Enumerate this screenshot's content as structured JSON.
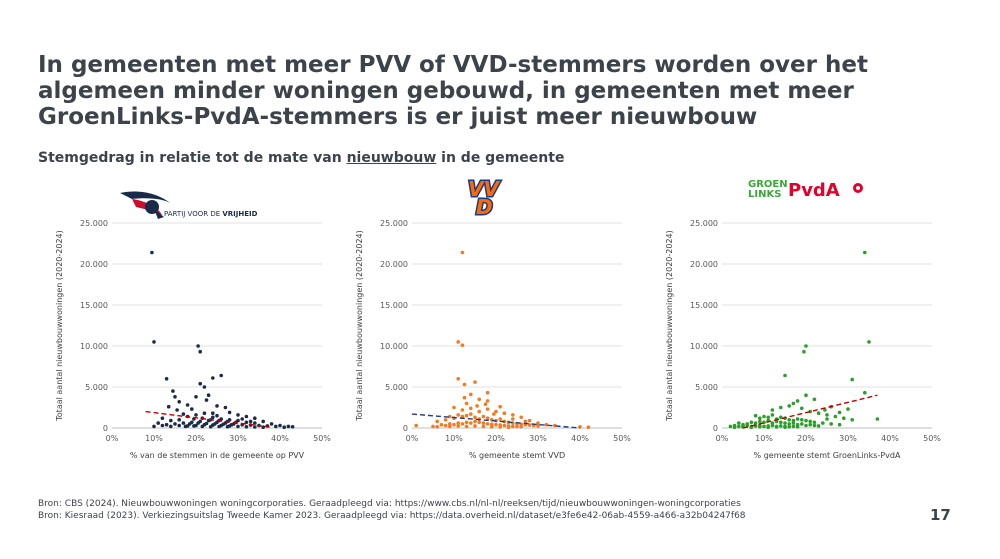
{
  "slide": {
    "title": "In gemeenten met meer PVV of VVD-stemmers worden over het algemeen minder woningen gebouwd, in gemeenten met meer GroenLinks-PvdA-stemmers is er juist meer nieuwbouw",
    "subtitle_before": "Stemgedrag in relatie tot de mate van ",
    "subtitle_link": "nieuwbouw",
    "subtitle_after": " in de gemeente",
    "sources": [
      "Bron: CBS (2024). Nieuwbouwwoningen woningcorporaties. Geraadpleegd via: https://www.cbs.nl/nl-nl/reeksen/tijd/nieuwbouwwoningen-woningcorporaties",
      "Bron: Kiesraad (2023). Verkiezingsuitslag Tweede Kamer 2023. Geraadpleegd via: https://data.overheid.nl/dataset/e3fe6e42-06ab-4559-a466-a32b04247f68"
    ],
    "page_number": "17"
  },
  "logos": {
    "pvv": {
      "text_before": "PARTIJ VOOR DE ",
      "text_bold": "VRIJHEID",
      "color": "#1a2a4a",
      "accent": "#c8102e"
    },
    "vvd": {
      "text": "VVD",
      "color": "#ff6a00",
      "accent": "#1a3a8a"
    },
    "glpvda": {
      "text1": "GROEN",
      "text2": "LINKS",
      "text3": "PvdA",
      "color_gl": "#39a935",
      "color_pvda": "#e4002b"
    }
  },
  "chart_data": [
    {
      "type": "scatter",
      "party": "PVV",
      "xlabel": "% van de stemmen in de gemeente op PVV",
      "ylabel": "Totaal aantal nieuwbouwwoningen (2020-2024)",
      "xlim": [
        0,
        50
      ],
      "ylim": [
        0,
        25000
      ],
      "xticks": [
        "0%",
        "10%",
        "20%",
        "30%",
        "40%",
        "50%"
      ],
      "yticks": [
        "0",
        "5.000",
        "10.000",
        "15.000",
        "20.000",
        "25.000"
      ],
      "marker_color": "#1b2b4b",
      "trendline": {
        "x": [
          8,
          38
        ],
        "y": [
          2000,
          100
        ],
        "color": "#c00000"
      },
      "points": [
        [
          9.5,
          21400
        ],
        [
          10,
          10500
        ],
        [
          13,
          6000
        ],
        [
          14.5,
          4500
        ],
        [
          15,
          3800
        ],
        [
          16,
          3200
        ],
        [
          20.5,
          10000
        ],
        [
          21,
          9300
        ],
        [
          24,
          6100
        ],
        [
          26,
          6400
        ],
        [
          21,
          5400
        ],
        [
          22,
          5000
        ],
        [
          23,
          4000
        ],
        [
          22.5,
          3400
        ],
        [
          20,
          3800
        ],
        [
          18,
          2800
        ],
        [
          25,
          2700
        ],
        [
          19,
          2300
        ],
        [
          27,
          2500
        ],
        [
          28,
          1900
        ],
        [
          24,
          1800
        ],
        [
          17,
          1700
        ],
        [
          30,
          1600
        ],
        [
          32,
          1400
        ],
        [
          34,
          1200
        ],
        [
          36,
          800
        ],
        [
          12,
          1200
        ],
        [
          14,
          900
        ],
        [
          16,
          1000
        ],
        [
          18,
          1400
        ],
        [
          20,
          1600
        ],
        [
          22,
          1800
        ],
        [
          24,
          1300
        ],
        [
          26,
          1100
        ],
        [
          28,
          1000
        ],
        [
          30,
          900
        ],
        [
          32,
          700
        ],
        [
          34,
          600
        ],
        [
          38,
          500
        ],
        [
          40,
          300
        ],
        [
          42,
          200
        ],
        [
          43,
          150
        ],
        [
          11,
          600
        ],
        [
          13,
          400
        ],
        [
          15,
          500
        ],
        [
          17,
          600
        ],
        [
          19,
          700
        ],
        [
          21,
          800
        ],
        [
          23,
          900
        ],
        [
          25,
          700
        ],
        [
          27,
          600
        ],
        [
          29,
          500
        ],
        [
          31,
          400
        ],
        [
          33,
          350
        ],
        [
          35,
          300
        ],
        [
          37,
          250
        ],
        [
          39,
          200
        ],
        [
          41,
          100
        ],
        [
          10,
          200
        ],
        [
          12,
          300
        ],
        [
          14,
          200
        ],
        [
          16,
          300
        ],
        [
          18,
          250
        ],
        [
          20,
          300
        ],
        [
          22,
          400
        ],
        [
          24,
          350
        ],
        [
          26,
          300
        ],
        [
          28,
          250
        ],
        [
          30,
          200
        ],
        [
          32,
          150
        ],
        [
          34,
          120
        ],
        [
          36,
          100
        ],
        [
          19.5,
          1100
        ],
        [
          21.5,
          1200
        ],
        [
          23.5,
          1000
        ],
        [
          25.5,
          900
        ],
        [
          27.5,
          800
        ],
        [
          29.5,
          700
        ],
        [
          18.5,
          500
        ],
        [
          20.5,
          600
        ],
        [
          22.5,
          550
        ],
        [
          24.5,
          500
        ],
        [
          26.5,
          450
        ],
        [
          28.5,
          400
        ],
        [
          17.5,
          200
        ],
        [
          19.5,
          250
        ],
        [
          21.5,
          200
        ],
        [
          23.5,
          150
        ],
        [
          25.5,
          180
        ],
        [
          27.5,
          160
        ],
        [
          15.5,
          2200
        ],
        [
          13.5,
          2600
        ],
        [
          25,
          1500
        ],
        [
          31,
          1100
        ],
        [
          33,
          800
        ]
      ]
    },
    {
      "type": "scatter",
      "party": "VVD",
      "xlabel": "% gemeente stemt VVD",
      "ylabel": "Totaal aantal nieuwbouwwoningen (2020-2024)",
      "xlim": [
        0,
        50
      ],
      "ylim": [
        0,
        25000
      ],
      "xticks": [
        "0%",
        "10%",
        "20%",
        "30%",
        "40%",
        "50%"
      ],
      "yticks": [
        "0",
        "5.000",
        "10.000",
        "15.000",
        "20.000",
        "25.000"
      ],
      "marker_color": "#f47a20",
      "trendline": {
        "x": [
          0,
          40
        ],
        "y": [
          1700,
          0
        ],
        "color": "#1f3b8a"
      },
      "points": [
        [
          12,
          21400
        ],
        [
          11,
          10500
        ],
        [
          12,
          10100
        ],
        [
          11,
          6000
        ],
        [
          12.5,
          5300
        ],
        [
          15,
          5600
        ],
        [
          18,
          4300
        ],
        [
          14,
          4100
        ],
        [
          16,
          3500
        ],
        [
          18,
          3300
        ],
        [
          13,
          3000
        ],
        [
          10,
          2500
        ],
        [
          12,
          2200
        ],
        [
          14,
          2400
        ],
        [
          16,
          2000
        ],
        [
          18,
          2300
        ],
        [
          20,
          2000
        ],
        [
          22,
          1800
        ],
        [
          24,
          1600
        ],
        [
          26,
          1300
        ],
        [
          28,
          900
        ],
        [
          30,
          600
        ],
        [
          32,
          400
        ],
        [
          34,
          300
        ],
        [
          40,
          150
        ],
        [
          42,
          100
        ],
        [
          6,
          800
        ],
        [
          8,
          1000
        ],
        [
          9,
          1400
        ],
        [
          10,
          1200
        ],
        [
          11,
          1600
        ],
        [
          12,
          1400
        ],
        [
          13,
          1500
        ],
        [
          14,
          1700
        ],
        [
          15,
          1300
        ],
        [
          16,
          1100
        ],
        [
          17,
          1400
        ],
        [
          18,
          1200
        ],
        [
          19,
          1000
        ],
        [
          20,
          900
        ],
        [
          21,
          1100
        ],
        [
          22,
          800
        ],
        [
          23,
          700
        ],
        [
          24,
          600
        ],
        [
          25,
          500
        ],
        [
          26,
          450
        ],
        [
          27,
          400
        ],
        [
          28,
          350
        ],
        [
          29,
          300
        ],
        [
          30,
          250
        ],
        [
          7,
          400
        ],
        [
          8,
          300
        ],
        [
          9,
          500
        ],
        [
          10,
          400
        ],
        [
          11,
          600
        ],
        [
          12,
          500
        ],
        [
          13,
          700
        ],
        [
          14,
          600
        ],
        [
          15,
          800
        ],
        [
          16,
          700
        ],
        [
          17,
          600
        ],
        [
          18,
          500
        ],
        [
          19,
          450
        ],
        [
          20,
          400
        ],
        [
          21,
          350
        ],
        [
          22,
          300
        ],
        [
          23,
          250
        ],
        [
          24,
          200
        ],
        [
          25,
          180
        ],
        [
          26,
          160
        ],
        [
          5,
          200
        ],
        [
          6,
          150
        ],
        [
          9,
          200
        ],
        [
          11,
          250
        ],
        [
          13,
          200
        ],
        [
          15,
          250
        ],
        [
          17,
          200
        ],
        [
          19,
          150
        ],
        [
          21,
          120
        ],
        [
          23,
          100
        ],
        [
          1,
          300
        ],
        [
          12.5,
          3700
        ],
        [
          15.5,
          2700
        ],
        [
          17.5,
          2900
        ],
        [
          19.5,
          1700
        ],
        [
          21,
          2600
        ],
        [
          24,
          1100
        ],
        [
          27,
          800
        ]
      ]
    },
    {
      "type": "scatter",
      "party": "GroenLinks-PvdA",
      "xlabel": "% gemeente stemt GroenLinks-PvdA",
      "ylabel": "Totaal aantal nieuwbouwwoningen (2020-2024)",
      "xlim": [
        0,
        50
      ],
      "ylim": [
        0,
        25000
      ],
      "xticks": [
        "0%",
        "10%",
        "20%",
        "30%",
        "40%",
        "50%"
      ],
      "yticks": [
        "0",
        "5.000",
        "10.000",
        "15.000",
        "20.000",
        "25.000"
      ],
      "marker_color": "#2aa02a",
      "trendline": {
        "x": [
          5,
          37
        ],
        "y": [
          0,
          4000
        ],
        "color": "#c00000"
      },
      "points": [
        [
          34,
          21400
        ],
        [
          35,
          10500
        ],
        [
          20,
          10000
        ],
        [
          19.5,
          9300
        ],
        [
          31,
          5900
        ],
        [
          15,
          6400
        ],
        [
          34,
          4300
        ],
        [
          37,
          1100
        ],
        [
          20,
          4000
        ],
        [
          18,
          3300
        ],
        [
          22,
          3500
        ],
        [
          17,
          3000
        ],
        [
          16,
          2700
        ],
        [
          14,
          2500
        ],
        [
          12,
          2200
        ],
        [
          19,
          2400
        ],
        [
          21,
          2000
        ],
        [
          23,
          1800
        ],
        [
          25,
          1600
        ],
        [
          27,
          1400
        ],
        [
          29,
          1200
        ],
        [
          31,
          1000
        ],
        [
          8,
          1500
        ],
        [
          9,
          1200
        ],
        [
          10,
          1400
        ],
        [
          11,
          1300
        ],
        [
          12,
          1600
        ],
        [
          13,
          1100
        ],
        [
          14,
          1300
        ],
        [
          15,
          1200
        ],
        [
          16,
          1000
        ],
        [
          17,
          900
        ],
        [
          18,
          1100
        ],
        [
          19,
          1000
        ],
        [
          20,
          900
        ],
        [
          21,
          800
        ],
        [
          22,
          700
        ],
        [
          24,
          600
        ],
        [
          26,
          500
        ],
        [
          28,
          400
        ],
        [
          4,
          600
        ],
        [
          5,
          400
        ],
        [
          6,
          500
        ],
        [
          7,
          700
        ],
        [
          8,
          600
        ],
        [
          9,
          800
        ],
        [
          10,
          700
        ],
        [
          11,
          900
        ],
        [
          12,
          600
        ],
        [
          13,
          800
        ],
        [
          14,
          700
        ],
        [
          15,
          600
        ],
        [
          16,
          500
        ],
        [
          17,
          600
        ],
        [
          18,
          400
        ],
        [
          19,
          500
        ],
        [
          20,
          300
        ],
        [
          21,
          400
        ],
        [
          22,
          300
        ],
        [
          23,
          250
        ],
        [
          2,
          200
        ],
        [
          3,
          300
        ],
        [
          4,
          200
        ],
        [
          5,
          250
        ],
        [
          6,
          300
        ],
        [
          7,
          200
        ],
        [
          8,
          250
        ],
        [
          9,
          300
        ],
        [
          10,
          200
        ],
        [
          11,
          250
        ],
        [
          12,
          300
        ],
        [
          13,
          200
        ],
        [
          14,
          250
        ],
        [
          15,
          200
        ],
        [
          16,
          150
        ],
        [
          17,
          200
        ],
        [
          18,
          150
        ],
        [
          3,
          100
        ],
        [
          5,
          120
        ],
        [
          7,
          100
        ],
        [
          9,
          150
        ],
        [
          11,
          100
        ],
        [
          13,
          120
        ],
        [
          15,
          100
        ],
        [
          24.5,
          2200
        ],
        [
          26,
          2600
        ],
        [
          28,
          1900
        ],
        [
          30,
          2300
        ],
        [
          25,
          1100
        ]
      ]
    }
  ]
}
